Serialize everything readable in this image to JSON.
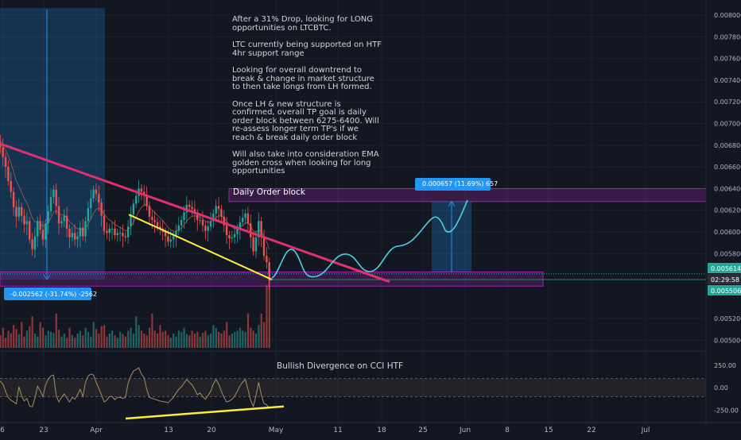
{
  "chart_data": [
    {
      "type": "candlestick",
      "symbol": "LTCBTC",
      "x_ticks": [
        "6",
        "23",
        "Apr",
        "13",
        "20",
        "May",
        "11",
        "18",
        "25",
        "Jun",
        "8",
        "15",
        "22",
        "Jul"
      ],
      "y_ticks": [
        "0.008000",
        "0.007800",
        "0.007600",
        "0.007400",
        "0.007200",
        "0.007000",
        "0.006800",
        "0.006600",
        "0.006400",
        "0.006200",
        "0.006000",
        "0.005800",
        "0.005200",
        "0.005000"
      ],
      "ylim": [
        0.0049,
        0.0081
      ],
      "grid": true,
      "price_labels": [
        {
          "text": "0.005614",
          "value": 0.005614,
          "color": "#26a69a"
        },
        {
          "text": "02:29:58",
          "value": 0.005535,
          "color": "#787b86"
        },
        {
          "text": "0.005506",
          "value": 0.005506,
          "color": "#26a69a"
        }
      ],
      "series": [
        {
          "name": "LTCBTC",
          "close": [
            0.006835,
            0.00678,
            0.00669,
            0.0066,
            0.00647,
            0.00637,
            0.00623,
            0.00614,
            0.00623,
            0.00615,
            0.00607,
            0.0061,
            0.00593,
            0.00584,
            0.00596,
            0.0061,
            0.00602,
            0.00593,
            0.00608,
            0.00619,
            0.00632,
            0.00639,
            0.00624,
            0.00608,
            0.0061,
            0.00615,
            0.00603,
            0.00595,
            0.00599,
            0.00593,
            0.00596,
            0.00604,
            0.00596,
            0.0061,
            0.00622,
            0.00631,
            0.00639,
            0.00635,
            0.00627,
            0.00615,
            0.00601,
            0.00599,
            0.00603,
            0.00603,
            0.00597,
            0.00599,
            0.00599,
            0.00596,
            0.00595,
            0.00605,
            0.00616,
            0.00626,
            0.00633,
            0.0064,
            0.00637,
            0.00634,
            0.00624,
            0.00614,
            0.00611,
            0.00609,
            0.00605,
            0.00603,
            0.006,
            0.00596,
            0.00591,
            0.00593,
            0.00596,
            0.00601,
            0.00606,
            0.00611,
            0.00618,
            0.00625,
            0.00623,
            0.00621,
            0.00617,
            0.00611,
            0.00611,
            0.00606,
            0.00601,
            0.00605,
            0.0061,
            0.00617,
            0.00624,
            0.00621,
            0.00614,
            0.00606,
            0.00597,
            0.00594,
            0.00595,
            0.00598,
            0.00603,
            0.00609,
            0.00613,
            0.00617,
            0.00608,
            0.00595,
            0.00582,
            0.00595,
            0.0061,
            0.00596,
            0.00578,
            0.00572,
            0.00555
          ],
          "color_up": "#26a69a",
          "color_down": "#ef5350"
        }
      ],
      "drawings": {
        "resistance_line": {
          "color": "#e0306e",
          "from": {
            "x": "Mar 1",
            "y": 0.00684
          },
          "to": {
            "x": "May 17",
            "y": 0.00554
          }
        },
        "support_line": {
          "color": "#ffeb3b",
          "from": {
            "x": "Apr 6",
            "y": 0.00616
          },
          "to": {
            "x": "Apr 29",
            "y": 0.00556
          }
        },
        "daily_order_block": {
          "label": "Daily Order block",
          "color": "#9c27b0",
          "y_range": [
            0.00628,
            0.0064
          ]
        },
        "support_zone": {
          "color": "#9c27b0",
          "y_range": [
            0.0055,
            0.00563
          ]
        },
        "drop_measure": {
          "label": "-0.002562 (-31.74%) -2562",
          "color": "#2196f3",
          "from_value": 0.00807,
          "to_value": 0.00557
        },
        "target_measure": {
          "label": "0.000657 (11.69%) 657",
          "color": "#2196f3",
          "from_value": 0.00563,
          "to_value": 0.00628
        },
        "projection_color": "#4dd0e1"
      },
      "annotation_lines": [
        "After a 31% Drop, looking for LONG opportunities on LTCBTC.",
        "LTC currently being supported on HTF 4hr support range",
        "Looking for overall downtrend to break & change in market structure to then take longs from LH formed.",
        "Once LH & new structure is confirmed, overall TP goal is daily order block between 6275-6400. Will re-assess longer term TP's if we reach & break daily order block",
        "Will also take into consideration EMA golden cross when looking for long opportunities"
      ]
    },
    {
      "type": "line",
      "title": "Bullish Divergence on CCI HTF",
      "y_ticks": [
        "250.00",
        "0.00",
        "-250.00"
      ],
      "ylim": [
        -330,
        380
      ],
      "bands": [
        100,
        -100
      ],
      "series": [
        {
          "name": "CCI",
          "color": "#ab8d5e",
          "values": [
            95,
            70,
            40,
            -45,
            -110,
            -140,
            -160,
            -180,
            10,
            -90,
            -150,
            -120,
            -205,
            -215,
            -120,
            15,
            -35,
            -100,
            30,
            95,
            130,
            140,
            -90,
            -160,
            -110,
            -70,
            -115,
            -160,
            -110,
            -130,
            -80,
            -20,
            -100,
            60,
            130,
            150,
            140,
            60,
            -10,
            -80,
            -160,
            -140,
            -100,
            -100,
            -135,
            -110,
            -110,
            -120,
            -110,
            50,
            130,
            185,
            200,
            220,
            150,
            110,
            -20,
            -110,
            -120,
            -130,
            -140,
            -150,
            -155,
            -160,
            -170,
            -140,
            -110,
            -60,
            -20,
            10,
            50,
            90,
            60,
            30,
            -20,
            -80,
            -60,
            -100,
            -130,
            -90,
            -40,
            40,
            90,
            40,
            -40,
            -110,
            -160,
            -150,
            -130,
            -95,
            -40,
            20,
            60,
            90,
            -20,
            -140,
            -210,
            -90,
            60,
            -80,
            -180,
            -190,
            -230
          ]
        }
      ],
      "divergence_line": {
        "color": "#ffeb3b",
        "from": {
          "x": "Apr 9",
          "y": -345
        },
        "to": {
          "x": "May 2",
          "y": -210
        }
      }
    },
    {
      "type": "bar",
      "title": "",
      "values": [
        28,
        22,
        35,
        18,
        30,
        26,
        40,
        33,
        24,
        45,
        20,
        30,
        38,
        55,
        25,
        20,
        45,
        35,
        22,
        30,
        28,
        26,
        60,
        32,
        20,
        25,
        18,
        35,
        22,
        18,
        25,
        30,
        22,
        35,
        28,
        20,
        45,
        33,
        25,
        38,
        40,
        20,
        25,
        30,
        22,
        18,
        28,
        24,
        20,
        30,
        35,
        25,
        55,
        40,
        30,
        25,
        22,
        35,
        60,
        30,
        25,
        40,
        28,
        30,
        22,
        18,
        25,
        20,
        30,
        28,
        35,
        24,
        22,
        30,
        25,
        28,
        20,
        26,
        30,
        22,
        25,
        40,
        35,
        28,
        25,
        30,
        45,
        22,
        25,
        28,
        30,
        35,
        30,
        28,
        60,
        35,
        30,
        25,
        40,
        60,
        45,
        110,
        120
      ],
      "ylim": [
        0,
        130
      ]
    }
  ]
}
